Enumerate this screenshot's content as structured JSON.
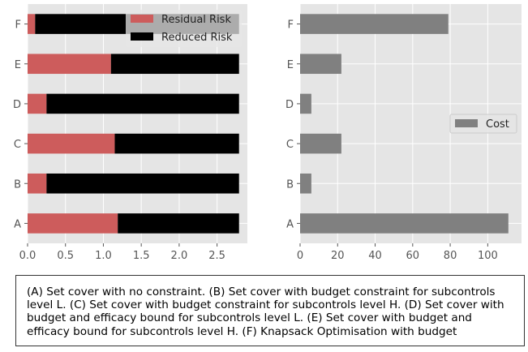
{
  "chart_data": [
    {
      "type": "bar",
      "orientation": "horizontal",
      "stacked": true,
      "categories": [
        "A",
        "B",
        "C",
        "D",
        "E",
        "F"
      ],
      "series": [
        {
          "name": "Residual Risk",
          "color": "#cd5c5c",
          "values": [
            1.19,
            0.25,
            1.15,
            0.25,
            1.1,
            0.1
          ]
        },
        {
          "name": "Reduced Risk",
          "color": "#000000",
          "values": [
            1.6,
            2.54,
            1.64,
            2.54,
            1.69,
            2.69
          ]
        }
      ],
      "xlim": [
        0,
        2.9
      ],
      "xticks": [
        "0.0",
        "0.5",
        "1.0",
        "1.5",
        "2.0",
        "2.5"
      ],
      "grid": true,
      "legend": "top-right"
    },
    {
      "type": "bar",
      "orientation": "horizontal",
      "categories": [
        "A",
        "B",
        "C",
        "D",
        "E",
        "F"
      ],
      "series": [
        {
          "name": "Cost",
          "color": "#808080",
          "values": [
            111,
            6,
            22,
            6,
            22,
            79
          ]
        }
      ],
      "xlim": [
        0,
        118
      ],
      "xticks": [
        "0",
        "20",
        "40",
        "60",
        "80",
        "100"
      ],
      "grid": true,
      "legend": "center-right"
    }
  ],
  "caption": "(A) Set cover with no constraint. (B) Set cover with budget constraint for subcontrols level L. (C) Set cover with budget constraint for subcontrols level H. (D) Set cover with budget and efficacy bound for subcontrols level L. (E) Set cover with budget and efficacy bound for subcontrols level H. (F) Knapsack Optimisation with budget"
}
